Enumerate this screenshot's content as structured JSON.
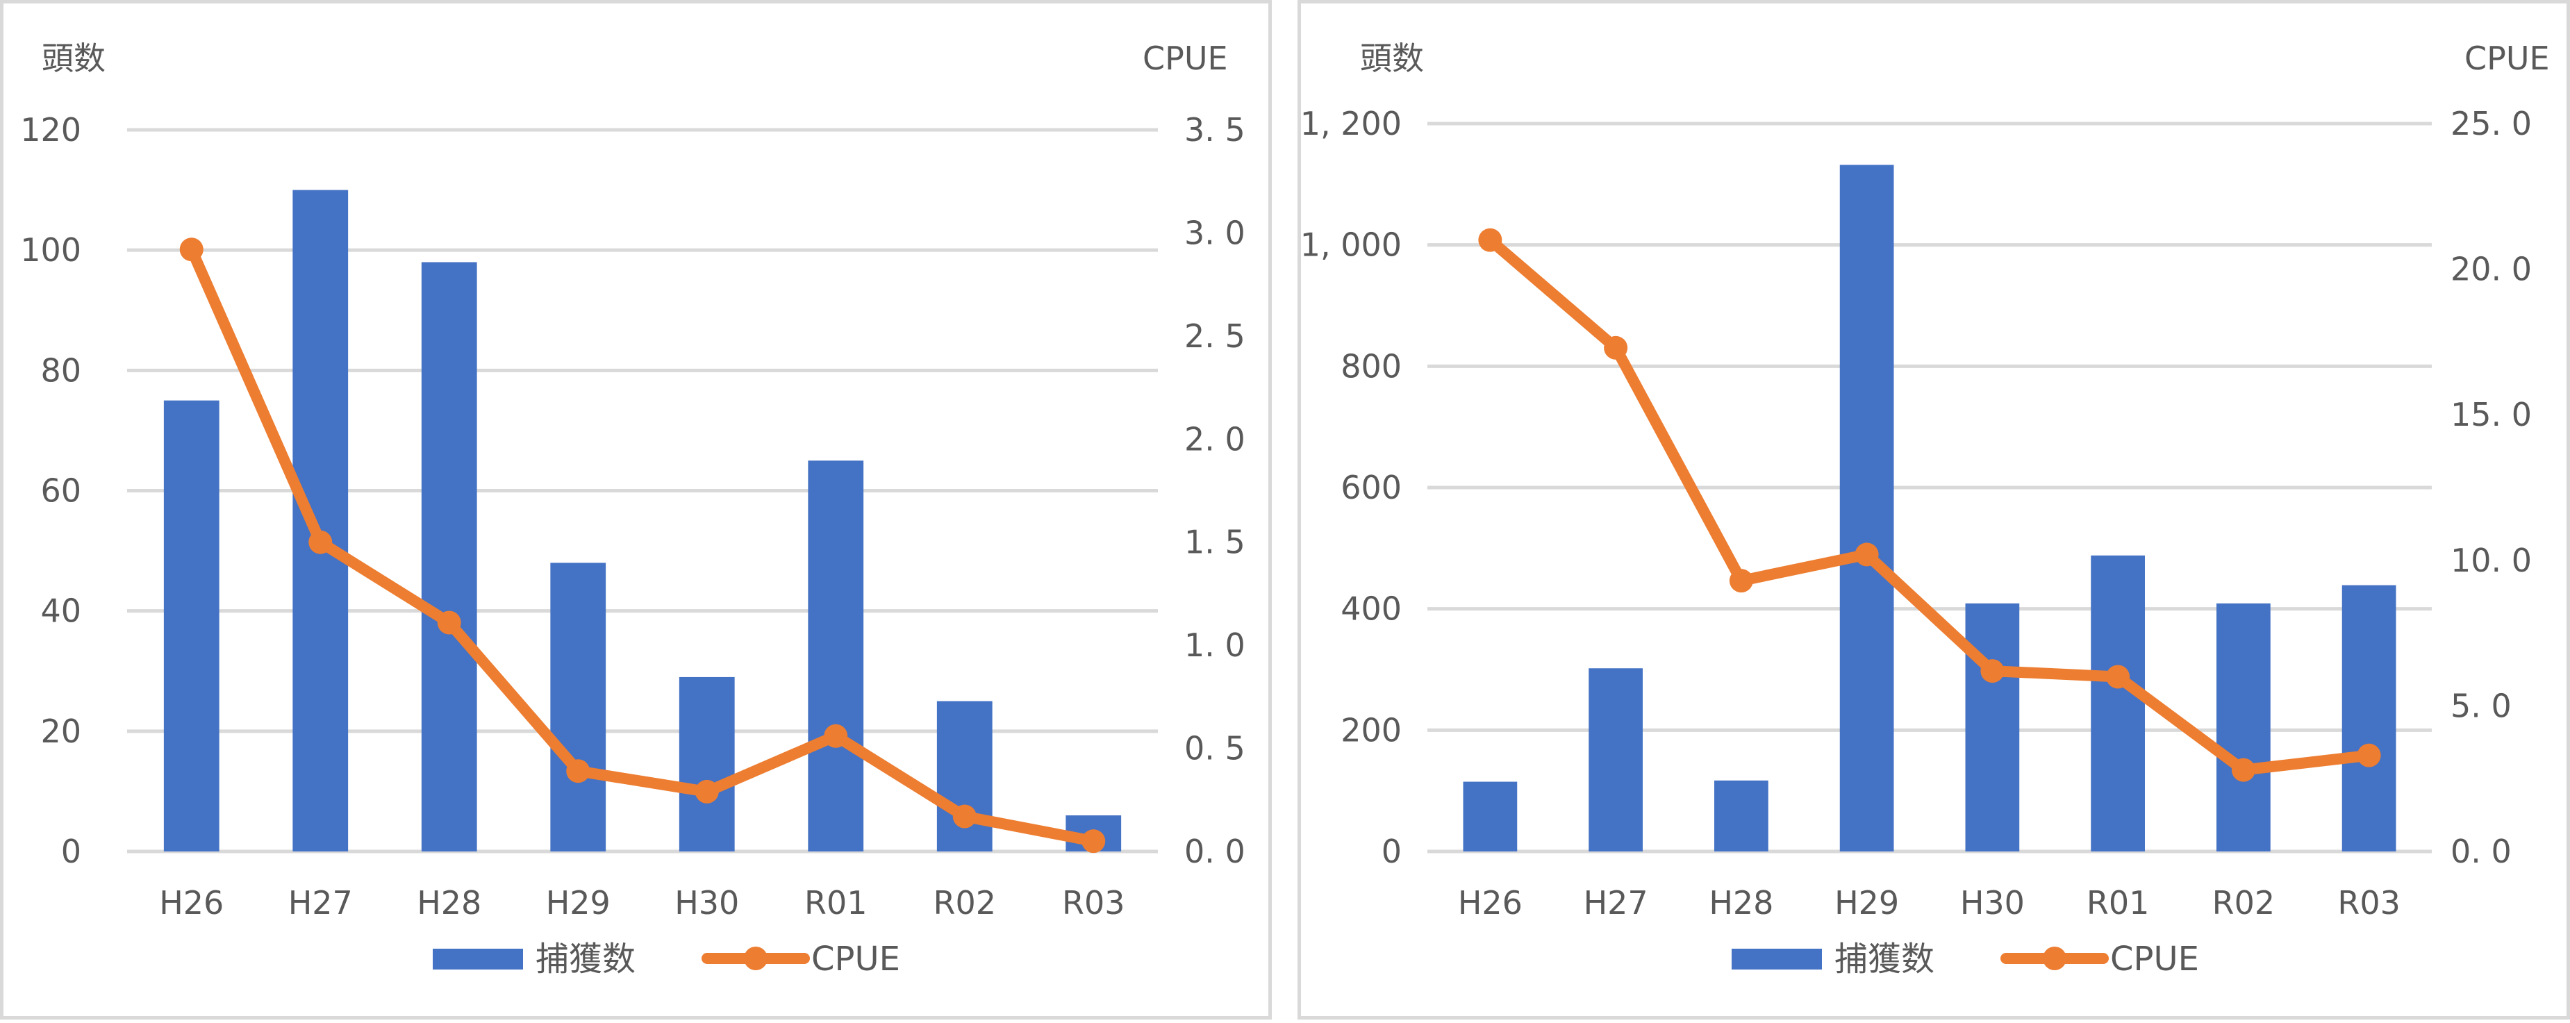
{
  "colors": {
    "bar": "#4472C4",
    "line": "#ED7D31",
    "grid": "#D9D9D9",
    "text": "#595959",
    "border": "#D9D9D9"
  },
  "legend": {
    "bar_label": "捕獲数",
    "line_label": "CPUE"
  },
  "chart_data": [
    {
      "type": "bar+line",
      "title": "",
      "categories": [
        "H26",
        "H27",
        "H28",
        "H29",
        "H30",
        "R01",
        "R02",
        "R03"
      ],
      "left_axis": {
        "title": "頭数",
        "min": 0,
        "max": 120,
        "step": 20,
        "tick_labels": [
          "0",
          "20",
          "40",
          "60",
          "80",
          "100",
          "120"
        ]
      },
      "right_axis": {
        "title": "CPUE",
        "min": 0,
        "max": 3.5,
        "step": 0.5,
        "tick_labels": [
          "0. 0",
          "0. 5",
          "1. 0",
          "1. 5",
          "2. 0",
          "2. 5",
          "3. 0",
          "3. 5"
        ]
      },
      "series": [
        {
          "name": "捕獲数",
          "type": "bar",
          "axis": "left",
          "values": [
            75,
            110,
            98,
            48,
            29,
            65,
            25,
            6
          ]
        },
        {
          "name": "CPUE",
          "type": "line",
          "axis": "right",
          "values": [
            2.92,
            1.5,
            1.11,
            0.39,
            0.29,
            0.56,
            0.17,
            0.05
          ]
        }
      ],
      "grid": true,
      "legend_position": "bottom"
    },
    {
      "type": "bar+line",
      "title": "",
      "categories": [
        "H26",
        "H27",
        "H28",
        "H29",
        "H30",
        "R01",
        "R02",
        "R03"
      ],
      "left_axis": {
        "title": "頭数",
        "min": 0,
        "max": 1200,
        "step": 200,
        "tick_labels": [
          "0",
          "200",
          "400",
          "600",
          "800",
          "1, 000",
          "1, 200"
        ]
      },
      "right_axis": {
        "title": "CPUE",
        "min": 0,
        "max": 25,
        "step": 5,
        "tick_labels": [
          "0. 0",
          "5. 0",
          "10. 0",
          "15. 0",
          "20. 0",
          "25. 0"
        ]
      },
      "series": [
        {
          "name": "捕獲数",
          "type": "bar",
          "axis": "left",
          "values": [
            115,
            302,
            117,
            1132,
            409,
            488,
            409,
            439
          ]
        },
        {
          "name": "CPUE",
          "type": "line",
          "axis": "right",
          "values": [
            21.0,
            17.3,
            9.3,
            10.2,
            6.2,
            6.0,
            2.8,
            3.3
          ]
        }
      ],
      "grid": true,
      "legend_position": "bottom"
    }
  ]
}
